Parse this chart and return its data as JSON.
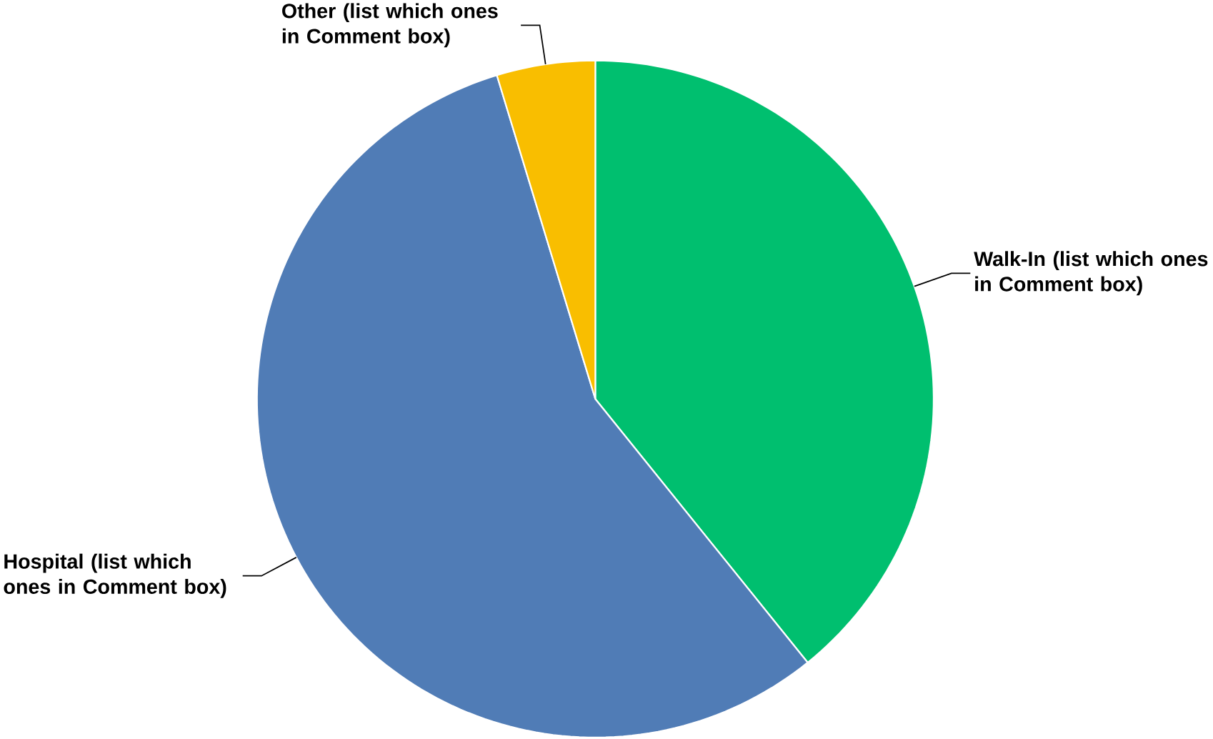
{
  "chart_data": {
    "type": "pie",
    "categories": [
      "Walk-In (list which ones in Comment box)",
      "Hospital (list which ones in Comment box)",
      "Other (list which ones in Comment box)"
    ],
    "values": [
      39.2,
      56.1,
      4.7
    ],
    "colors": [
      "#00bf6f",
      "#507cb6",
      "#f9be00"
    ]
  }
}
